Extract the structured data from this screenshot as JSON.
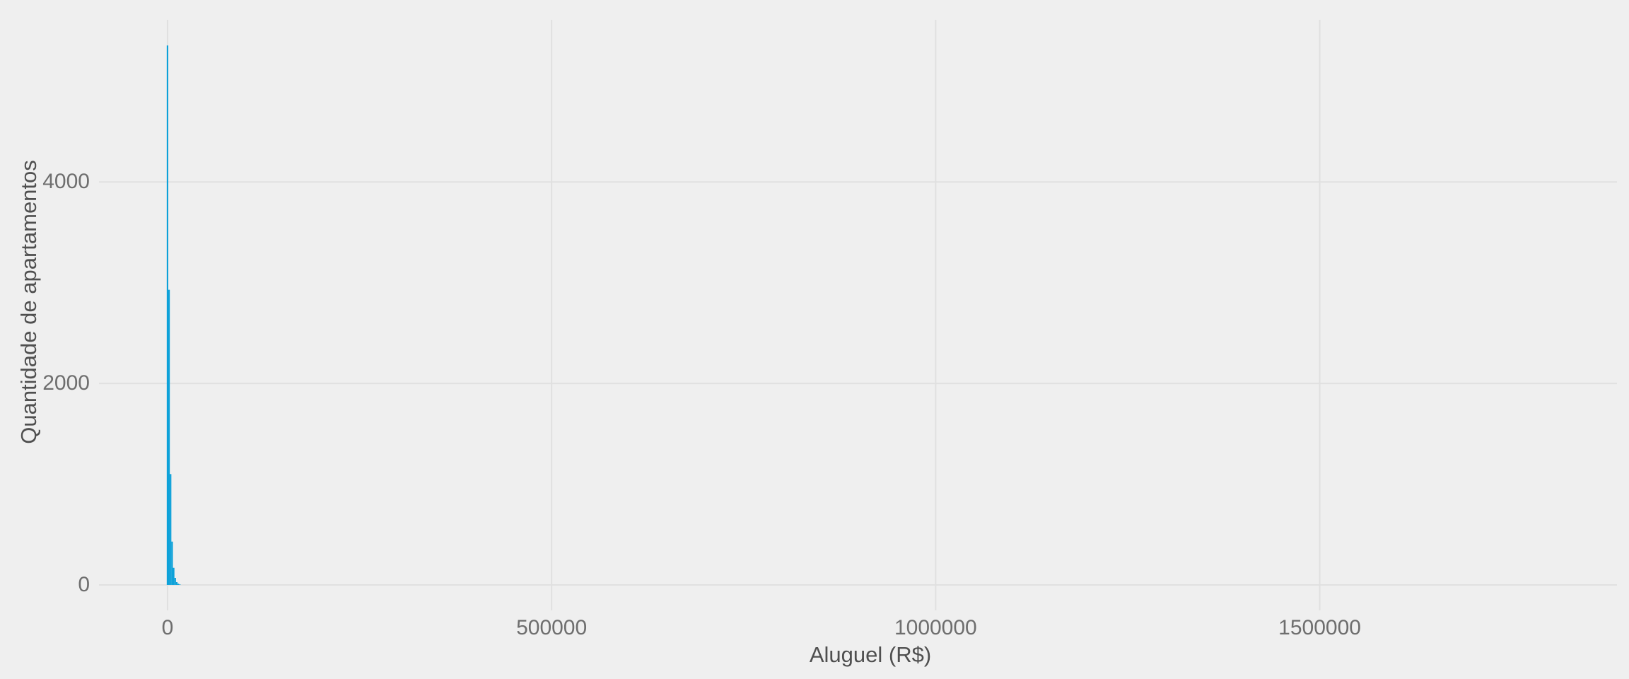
{
  "figure": {
    "background_color": "#efefef",
    "grid_color": "#e0e0e0",
    "bar_color": "#0ca1d9",
    "tick_text_color": "#6e6e6e",
    "title_text_color": "#4f4f4f"
  },
  "chart_data": {
    "type": "bar",
    "subtype": "histogram",
    "title": "",
    "xlabel": "Aluguel (R$)",
    "ylabel": "Quantidade de apartamentos",
    "legend": "none",
    "grid": "major-only",
    "xlim": [
      -57000,
      1887000
    ],
    "ylim": [
      -253,
      5610
    ],
    "x_ticks": [
      {
        "value": 0,
        "label": "0"
      },
      {
        "value": 500000,
        "label": "500000"
      },
      {
        "value": 1000000,
        "label": "1000000"
      },
      {
        "value": 1500000,
        "label": "1500000"
      }
    ],
    "y_ticks": [
      {
        "value": 0,
        "label": "0"
      },
      {
        "value": 2000,
        "label": "2000"
      },
      {
        "value": 4000,
        "label": "4000"
      }
    ],
    "binwidth": 2000,
    "bins": [
      {
        "center": 0,
        "count": 5355
      },
      {
        "center": 2000,
        "count": 2930
      },
      {
        "center": 4000,
        "count": 1100
      },
      {
        "center": 6000,
        "count": 430
      },
      {
        "center": 8000,
        "count": 170
      },
      {
        "center": 10000,
        "count": 70
      },
      {
        "center": 12000,
        "count": 28
      },
      {
        "center": 14000,
        "count": 12
      },
      {
        "center": 16000,
        "count": 5
      }
    ]
  }
}
